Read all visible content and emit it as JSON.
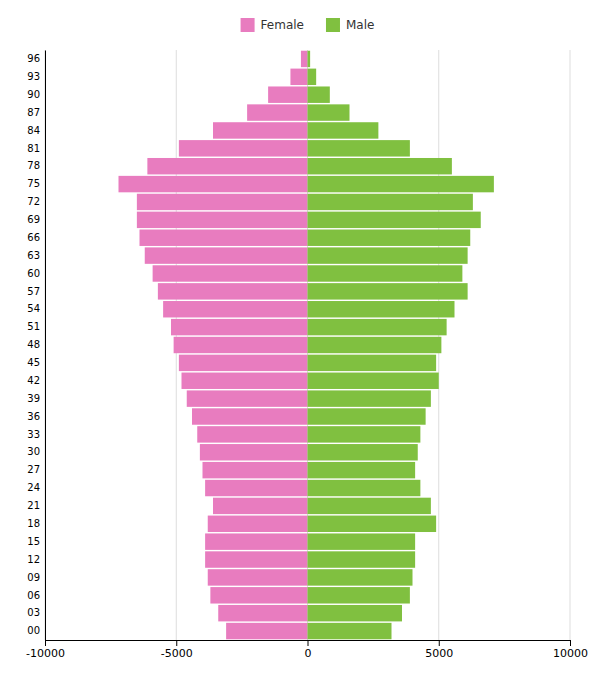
{
  "chart_data": {
    "type": "bar",
    "orientation": "horizontal",
    "categories": [
      "00",
      "03",
      "06",
      "09",
      "12",
      "15",
      "18",
      "21",
      "24",
      "27",
      "30",
      "33",
      "36",
      "39",
      "42",
      "45",
      "48",
      "51",
      "54",
      "57",
      "60",
      "63",
      "66",
      "69",
      "72",
      "75",
      "78",
      "81",
      "84",
      "87",
      "90",
      "93",
      "96"
    ],
    "series": [
      {
        "name": "Female",
        "color": "#e87cbf",
        "values": [
          -3100,
          -3400,
          -3700,
          -3800,
          -3900,
          -3900,
          -3800,
          -3600,
          -3900,
          -4000,
          -4100,
          -4200,
          -4400,
          -4600,
          -4800,
          -4900,
          -5100,
          -5200,
          -5500,
          -5700,
          -5900,
          -6200,
          -6400,
          -6500,
          -6500,
          -7200,
          -6100,
          -4900,
          -3600,
          -2300,
          -1500,
          -650,
          -250
        ]
      },
      {
        "name": "Male",
        "color": "#80c040",
        "values": [
          3200,
          3600,
          3900,
          4000,
          4100,
          4100,
          4900,
          4700,
          4300,
          4100,
          4200,
          4300,
          4500,
          4700,
          5000,
          4900,
          5100,
          5300,
          5600,
          6100,
          5900,
          6100,
          6200,
          6600,
          6300,
          7100,
          5500,
          3900,
          2700,
          1600,
          850,
          330,
          100
        ]
      }
    ],
    "xlim": [
      -10000,
      10000
    ],
    "xticks": [
      -10000,
      -5000,
      0,
      5000,
      10000
    ],
    "grid": true,
    "legend": "top"
  }
}
